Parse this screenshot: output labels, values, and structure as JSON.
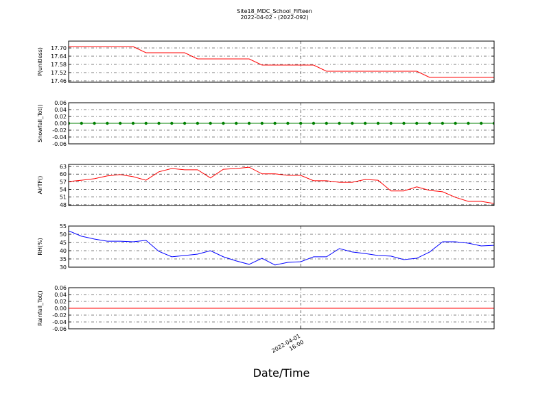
{
  "title": "Site18_MDC_School_Fifteen",
  "subtitle": "2022-04-02 - (2022-092)",
  "xlabel": "Date/Time",
  "chart_data": [
    {
      "type": "line",
      "ylabel": "P(unitless)",
      "ylim": [
        17.45,
        17.75
      ],
      "yticks": [
        17.46,
        17.52,
        17.58,
        17.64,
        {
          "value": 17.7,
          "label": "17.70"
        }
      ],
      "grid": true,
      "series": [
        {
          "color": "#ff0000",
          "markers": false,
          "values": [
            17.71,
            17.71,
            17.71,
            17.71,
            17.71,
            17.71,
            17.665,
            17.665,
            17.665,
            17.665,
            17.62,
            17.62,
            17.62,
            17.62,
            17.62,
            17.575,
            17.575,
            17.575,
            17.575,
            17.575,
            17.53,
            17.53,
            17.53,
            17.53,
            17.53,
            17.53,
            17.53,
            17.53,
            17.485,
            17.485,
            17.485,
            17.485,
            17.485,
            17.485
          ]
        }
      ]
    },
    {
      "type": "line",
      "ylabel": "Snowfall_Tot()",
      "ylim": [
        -0.06,
        0.06
      ],
      "yticks": [
        -0.06,
        -0.04,
        -0.02,
        {
          "value": 0,
          "label": "0.00"
        },
        0.02,
        0.04,
        0.06
      ],
      "grid": true,
      "series": [
        {
          "color": "#008000",
          "markers": true,
          "values": [
            0,
            0,
            0,
            0,
            0,
            0,
            0,
            0,
            0,
            0,
            0,
            0,
            0,
            0,
            0,
            0,
            0,
            0,
            0,
            0,
            0,
            0,
            0,
            0,
            0,
            0,
            0,
            0,
            0,
            0,
            0,
            0,
            0,
            0
          ]
        }
      ]
    },
    {
      "type": "line",
      "ylabel": "AirTF()",
      "ylim": [
        47.7,
        63.8
      ],
      "yticks": [
        48,
        51,
        54,
        57,
        60,
        63
      ],
      "grid": true,
      "series": [
        {
          "color": "#ff0000",
          "markers": false,
          "values": [
            57.1,
            57.6,
            58.2,
            59.3,
            59.8,
            59.0,
            57.6,
            60.9,
            62.2,
            61.7,
            61.7,
            58.5,
            61.9,
            62.2,
            62.7,
            60.1,
            60.1,
            59.5,
            59.5,
            57.4,
            57.4,
            56.8,
            56.8,
            57.9,
            57.6,
            53.4,
            53.4,
            55.0,
            53.6,
            53.1,
            50.9,
            49.3,
            49.3,
            48.5
          ]
        }
      ]
    },
    {
      "type": "line",
      "ylabel": "RH(%)",
      "ylim": [
        30,
        55
      ],
      "yticks": [
        30,
        35,
        40,
        45,
        50,
        55
      ],
      "grid": true,
      "series": [
        {
          "color": "#0000ff",
          "markers": false,
          "values": [
            52.1,
            48.8,
            47.1,
            45.8,
            45.8,
            45.4,
            46.3,
            39.6,
            36.3,
            37.1,
            37.9,
            40.0,
            36.3,
            33.8,
            31.7,
            35.4,
            31.3,
            32.9,
            33.3,
            36.3,
            36.3,
            41.3,
            39.2,
            38.3,
            37.1,
            36.7,
            34.6,
            35.4,
            39.2,
            45.4,
            45.4,
            44.6,
            42.9,
            43.3
          ]
        }
      ]
    },
    {
      "type": "line",
      "ylabel": "Rainfall_Tot()",
      "ylim": [
        -0.06,
        0.06
      ],
      "yticks": [
        -0.06,
        -0.04,
        -0.02,
        {
          "value": 0,
          "label": "0.00"
        },
        0.02,
        0.04,
        0.06
      ],
      "grid": true,
      "categories": [
        null,
        null,
        null,
        null,
        null,
        null,
        null,
        null,
        null,
        null,
        null,
        null,
        null,
        null,
        null,
        null,
        null,
        null,
        "2022-04-01\n16:00",
        null,
        null,
        null,
        null,
        null,
        null,
        null,
        null,
        null,
        null,
        null,
        null,
        null,
        null,
        null
      ],
      "series": [
        {
          "color": "#ff0000",
          "markers": false,
          "values": [
            0,
            0,
            0,
            0,
            0,
            0,
            0,
            0,
            0,
            0,
            0,
            0,
            0,
            0,
            0,
            0,
            0,
            0,
            0,
            0,
            0,
            0,
            0,
            0,
            0,
            0,
            0,
            0,
            0,
            0,
            0,
            0,
            0,
            0
          ]
        }
      ]
    }
  ]
}
